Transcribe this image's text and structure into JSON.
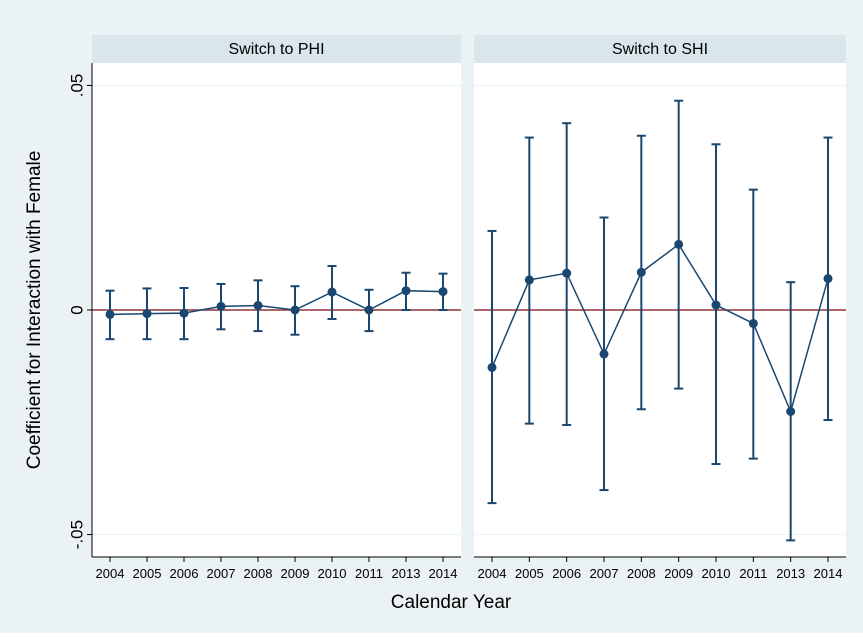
{
  "chart_data": {
    "type": "scatter",
    "ylabel": "Coefficient for Interaction with Female",
    "xlabel": "Calendar Year",
    "ylim": [
      -0.055,
      0.055
    ],
    "yticks": [
      {
        "value": -0.05,
        "label": "-.05"
      },
      {
        "value": 0,
        "label": "0"
      },
      {
        "value": 0.05,
        "label": ".05"
      }
    ],
    "reference_line": 0,
    "grid": true,
    "colors": {
      "outer_bg": "#eaf2f3",
      "strip": "#d9e6eb",
      "line": "#1a476f",
      "reference": "#90353b",
      "grid": "#eaf2f3"
    },
    "categories": [
      "2004",
      "2005",
      "2006",
      "2007",
      "2008",
      "2009",
      "2010",
      "2011",
      "2013",
      "2014"
    ],
    "panels": [
      {
        "title": "Switch to PHI",
        "values": [
          -0.001,
          -0.0008,
          -0.0007,
          0.0008,
          0.001,
          0.0,
          0.004,
          0.0,
          0.0043,
          0.0041
        ],
        "ci_low": [
          -0.0065,
          -0.0065,
          -0.0065,
          -0.0043,
          -0.0047,
          -0.0055,
          -0.002,
          -0.0047,
          0.0,
          0.0
        ],
        "ci_high": [
          0.0043,
          0.0048,
          0.0049,
          0.0058,
          0.0066,
          0.0053,
          0.0098,
          0.0045,
          0.0083,
          0.0081
        ]
      },
      {
        "title": "Switch to SHI",
        "values": [
          -0.0128,
          0.0067,
          0.0082,
          -0.0098,
          0.0084,
          0.0146,
          0.0011,
          -0.003,
          -0.0226,
          0.007
        ],
        "ci_low": [
          -0.043,
          -0.0253,
          -0.0256,
          -0.0401,
          -0.0221,
          -0.0175,
          -0.0343,
          -0.0331,
          -0.0513,
          -0.0245
        ],
        "ci_high": [
          0.0176,
          0.0384,
          0.0416,
          0.0206,
          0.0388,
          0.0466,
          0.0369,
          0.0268,
          0.0062,
          0.0384
        ]
      }
    ]
  }
}
